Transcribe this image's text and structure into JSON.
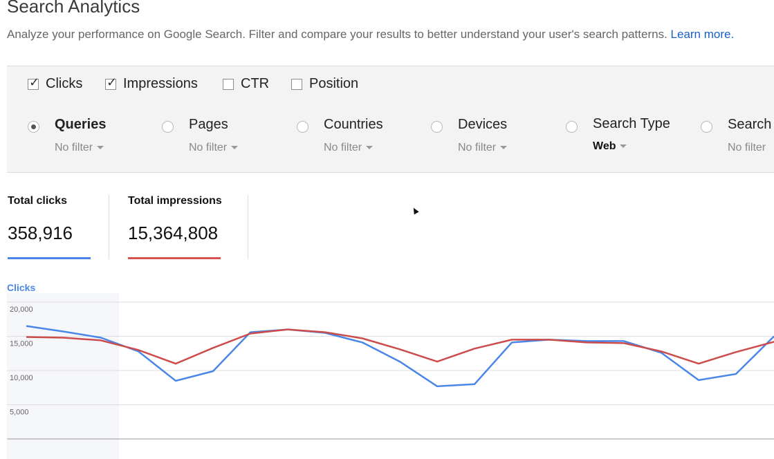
{
  "header": {
    "title": "Search Analytics",
    "description": "Analyze your performance on Google Search. Filter and compare your results to better understand your user's search patterns.",
    "learn_more": "Learn more."
  },
  "metrics": [
    {
      "label": "Clicks",
      "checked": true
    },
    {
      "label": "Impressions",
      "checked": true
    },
    {
      "label": "CTR",
      "checked": false
    },
    {
      "label": "Position",
      "checked": false
    }
  ],
  "dimensions": [
    {
      "label": "Queries",
      "filter": "No filter",
      "selected": true
    },
    {
      "label": "Pages",
      "filter": "No filter",
      "selected": false
    },
    {
      "label": "Countries",
      "filter": "No filter",
      "selected": false
    },
    {
      "label": "Devices",
      "filter": "No filter",
      "selected": false
    },
    {
      "label": "Search Type",
      "filter": "Web",
      "selected": false
    },
    {
      "label": "Search",
      "filter": "No filter",
      "selected": false
    }
  ],
  "totals": [
    {
      "label": "Total clicks",
      "value": "358,916",
      "color": "#4a86e8"
    },
    {
      "label": "Total impressions",
      "value": "15,364,808",
      "color": "#d9534f"
    }
  ],
  "colors": {
    "clicks": "#4a86e8",
    "impressions": "#cc4b4b",
    "link": "#1a5fc8"
  },
  "chart_data": {
    "type": "line",
    "title": "Clicks",
    "ylim": [
      0,
      20000
    ],
    "yticks": [
      "20,000",
      "15,000",
      "10,000",
      "5,000"
    ],
    "grid": true,
    "series": [
      {
        "name": "Clicks",
        "values": [
          16500,
          15700,
          14800,
          12800,
          8500,
          9900,
          15600,
          16000,
          15500,
          14100,
          11300,
          7700,
          8000,
          14100,
          14500,
          14300,
          14300,
          12600,
          8600,
          9500,
          15000
        ]
      },
      {
        "name": "Impressions",
        "values": [
          14900,
          14800,
          14400,
          13000,
          11000,
          13300,
          15400,
          16000,
          15600,
          14700,
          13100,
          11300,
          13200,
          14500,
          14500,
          14100,
          14000,
          12800,
          11000,
          12700,
          14200
        ]
      }
    ]
  }
}
